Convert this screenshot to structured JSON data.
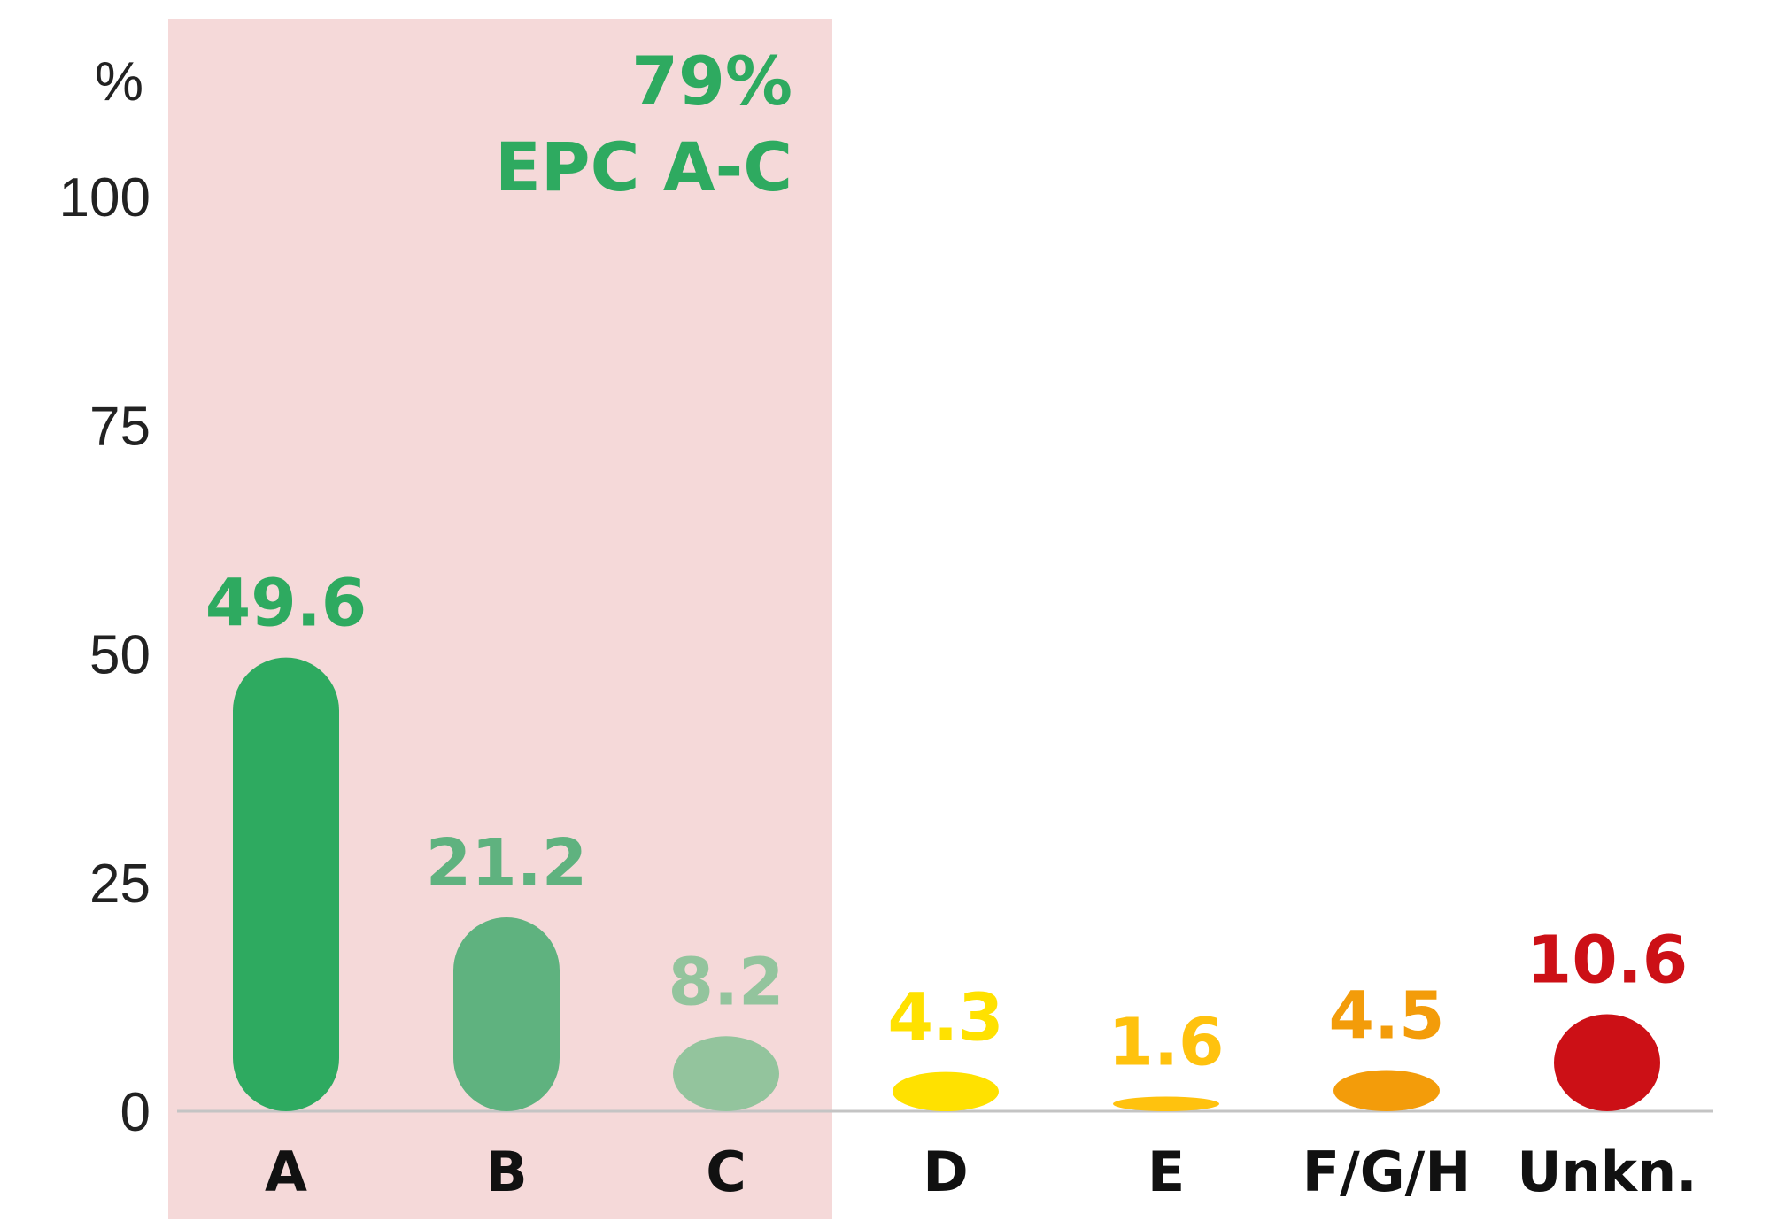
{
  "chart_data": {
    "type": "bar",
    "unit_label": "%",
    "categories": [
      "A",
      "B",
      "C",
      "D",
      "E",
      "F/G/H",
      "Unkn."
    ],
    "values": [
      49.6,
      21.2,
      8.2,
      4.3,
      1.6,
      4.5,
      10.6
    ],
    "colors": [
      "#2eaa60",
      "#5fb27f",
      "#93c49d",
      "#ffe100",
      "#ffc20e",
      "#f39c0a",
      "#cc1016"
    ],
    "label_colors": [
      "#2eaa60",
      "#5fb27f",
      "#93c49d",
      "#ffe100",
      "#ffc20e",
      "#f39c0a",
      "#cc1016"
    ],
    "yticks": [
      0,
      25,
      50,
      75,
      100
    ],
    "ylim": [
      0,
      100
    ],
    "highlight": {
      "categories": [
        "A",
        "B",
        "C"
      ],
      "color": "#f5d9d9",
      "line1": "79%",
      "line2": "EPC A-C"
    },
    "xlabel": "",
    "ylabel": "",
    "grid": false
  }
}
